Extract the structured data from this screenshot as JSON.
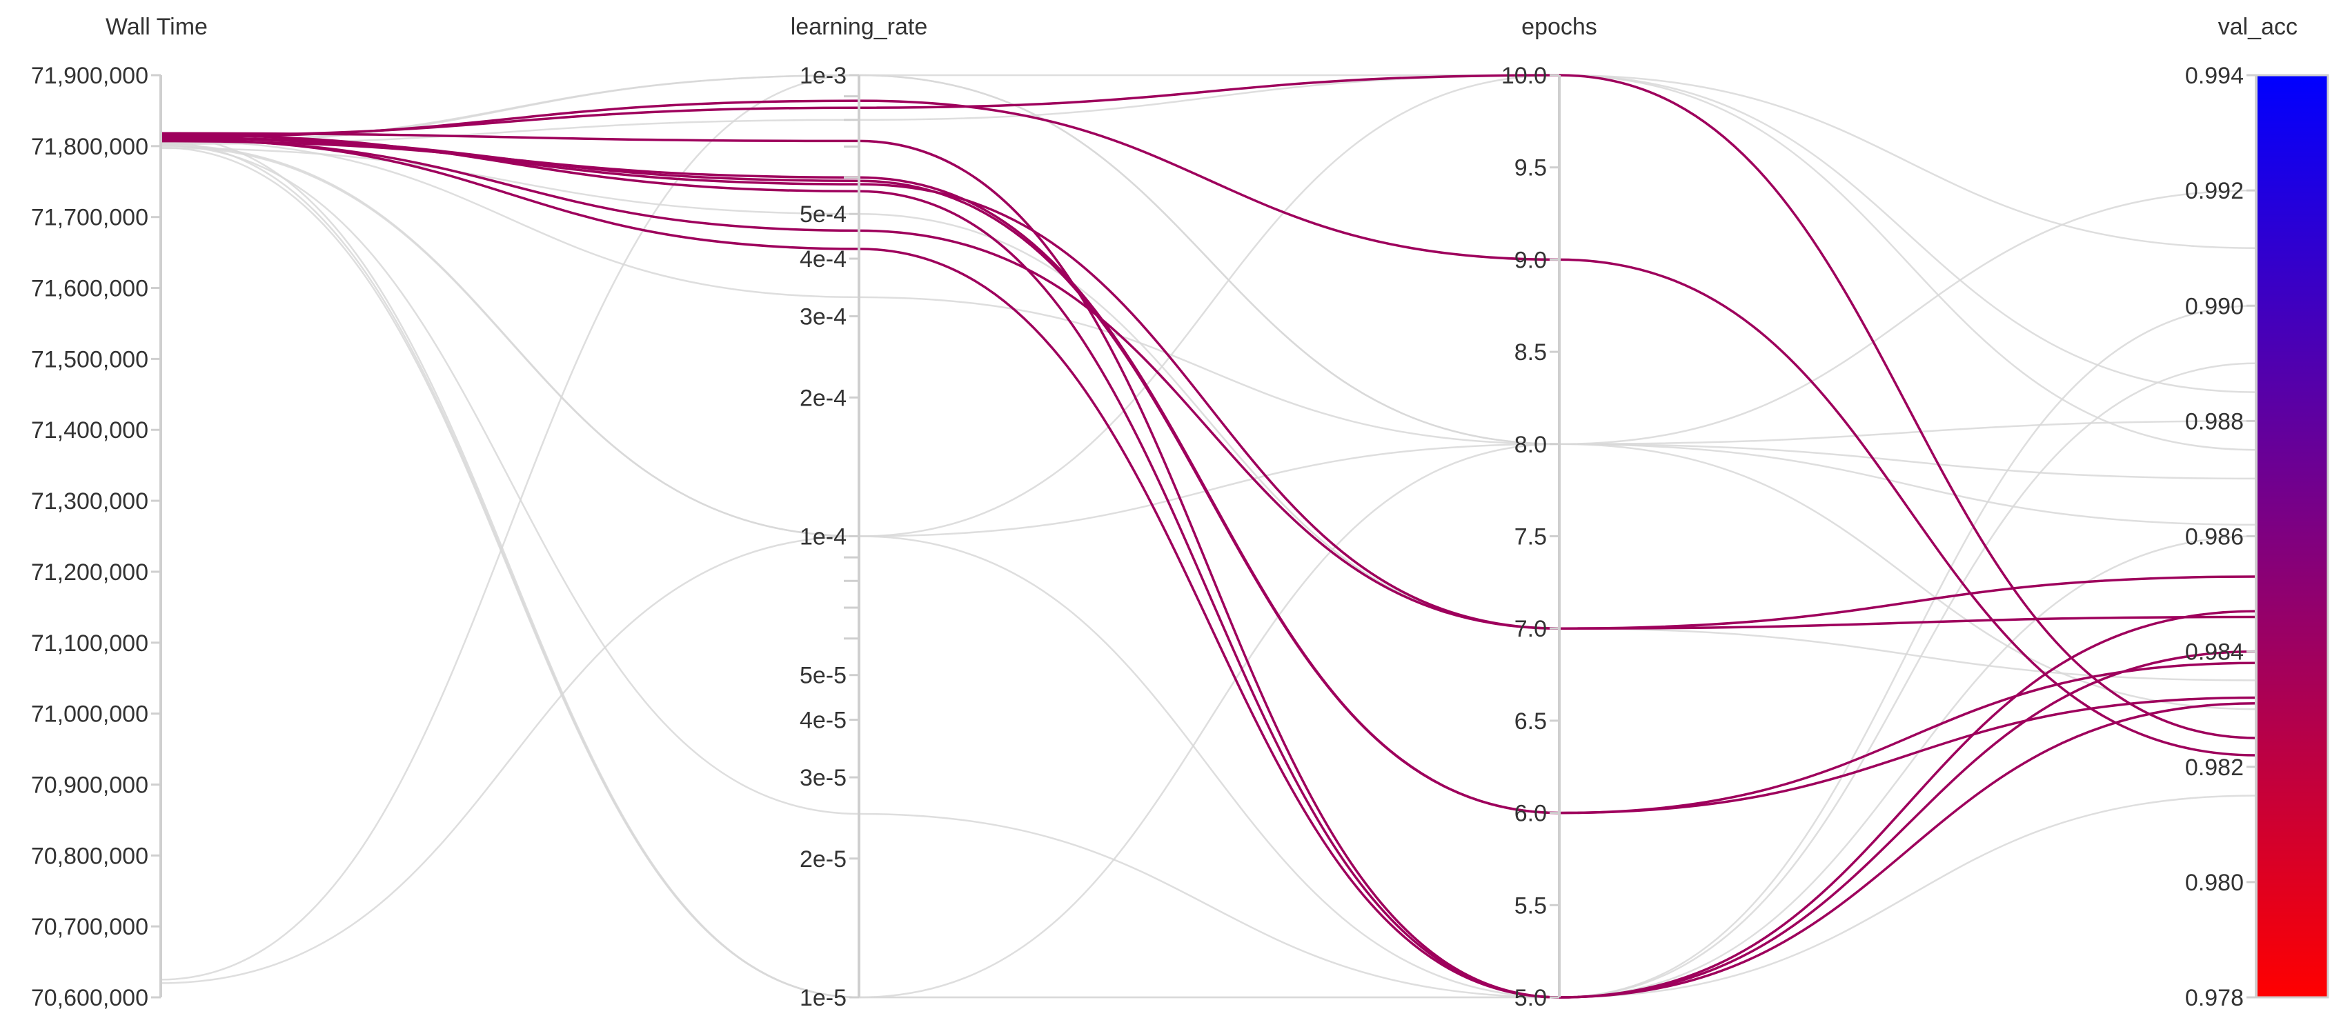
{
  "chart_data": {
    "type": "parallel_coordinates",
    "axes": [
      {
        "name": "Wall Time",
        "scale": "linear",
        "range": [
          70600000,
          71900000
        ],
        "ticks": [
          70600000,
          70700000,
          70800000,
          70900000,
          71000000,
          71100000,
          71200000,
          71300000,
          71400000,
          71500000,
          71600000,
          71700000,
          71800000,
          71900000
        ],
        "tick_labels": [
          "70,600,000",
          "70,700,000",
          "70,800,000",
          "70,900,000",
          "71,000,000",
          "71,100,000",
          "71,200,000",
          "71,300,000",
          "71,400,000",
          "71,500,000",
          "71,600,000",
          "71,700,000",
          "71,800,000",
          "71,900,000"
        ]
      },
      {
        "name": "learning_rate",
        "scale": "log",
        "range": [
          1e-05,
          0.001
        ],
        "ticks": [
          1e-05,
          2e-05,
          3e-05,
          4e-05,
          5e-05,
          0.0001,
          0.0002,
          0.0003,
          0.0004,
          0.0005,
          0.001
        ],
        "tick_labels": [
          "1e-5",
          "2e-5",
          "3e-5",
          "4e-5",
          "5e-5",
          "1e-4",
          "2e-4",
          "3e-4",
          "4e-4",
          "5e-4",
          "1e-3"
        ],
        "minor_ticks": [
          6e-05,
          7e-05,
          8e-05,
          9e-05,
          0.0006,
          0.0007,
          0.0008,
          0.0009
        ]
      },
      {
        "name": "epochs",
        "scale": "linear",
        "range": [
          5,
          10
        ],
        "ticks": [
          5.0,
          5.5,
          6.0,
          6.5,
          7.0,
          7.5,
          8.0,
          8.5,
          9.0,
          9.5,
          10.0
        ],
        "tick_labels": [
          "5.0",
          "5.5",
          "6.0",
          "6.5",
          "7.0",
          "7.5",
          "8.0",
          "8.5",
          "9.0",
          "9.5",
          "10.0"
        ]
      },
      {
        "name": "val_acc",
        "scale": "linear",
        "range": [
          0.978,
          0.994
        ],
        "ticks": [
          0.978,
          0.98,
          0.982,
          0.984,
          0.986,
          0.988,
          0.99,
          0.992,
          0.994
        ],
        "tick_labels": [
          "0.978",
          "0.980",
          "0.982",
          "0.984",
          "0.986",
          "0.988",
          "0.990",
          "0.992",
          "0.994"
        ],
        "colorbar": {
          "low_color": "#ff0000",
          "high_color": "#0000ff"
        }
      }
    ],
    "highlighted_color": "#9e005c",
    "muted_color": "#d8d8d8",
    "runs": [
      {
        "values": [
          71815000,
          0.00085,
          10,
          0.9825
        ],
        "highlighted": true
      },
      {
        "values": [
          71813000,
          0.00088,
          9,
          0.9822
        ],
        "highlighted": true
      },
      {
        "values": [
          71811000,
          0.00058,
          7,
          0.9853
        ],
        "highlighted": true
      },
      {
        "values": [
          71809000,
          0.00046,
          7,
          0.9846
        ],
        "highlighted": true
      },
      {
        "values": [
          71812000,
          0.00059,
          6,
          0.9838
        ],
        "highlighted": true
      },
      {
        "values": [
          71807000,
          0.0006,
          6,
          0.9832
        ],
        "highlighted": true
      },
      {
        "values": [
          71810000,
          0.00042,
          5,
          0.9847
        ],
        "highlighted": true
      },
      {
        "values": [
          71818000,
          0.00072,
          5,
          0.9831
        ],
        "highlighted": true
      },
      {
        "values": [
          71816000,
          0.00056,
          5,
          0.984
        ],
        "highlighted": true
      },
      {
        "values": [
          71808000,
          0.00033,
          8,
          0.9862
        ],
        "highlighted": false
      },
      {
        "values": [
          71806000,
          0.001,
          10,
          0.991
        ],
        "highlighted": false
      },
      {
        "values": [
          71804000,
          0.001,
          8,
          0.988
        ],
        "highlighted": false
      },
      {
        "values": [
          71802000,
          0.0001,
          5,
          0.989
        ],
        "highlighted": false
      },
      {
        "values": [
          71800000,
          0.0001,
          8,
          0.987
        ],
        "highlighted": false
      },
      {
        "values": [
          71798000,
          1e-05,
          5,
          0.986
        ],
        "highlighted": false
      },
      {
        "values": [
          71805000,
          1e-05,
          5,
          0.9815
        ],
        "highlighted": false
      },
      {
        "values": [
          71801000,
          2.5e-05,
          5,
          0.99
        ],
        "highlighted": false
      },
      {
        "values": [
          71814000,
          1e-05,
          8,
          0.992
        ],
        "highlighted": false
      },
      {
        "values": [
          71803000,
          0.0008,
          10,
          0.9885
        ],
        "highlighted": false
      },
      {
        "values": [
          70625000,
          0.001,
          8,
          0.983
        ],
        "highlighted": false
      },
      {
        "values": [
          70620000,
          0.0001,
          10,
          0.9875
        ],
        "highlighted": false
      },
      {
        "values": [
          71797000,
          0.0005,
          7,
          0.9835
        ],
        "highlighted": false
      }
    ]
  }
}
